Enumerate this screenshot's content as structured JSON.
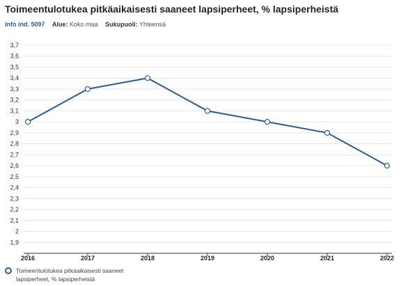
{
  "title": "Toimeentulotukea pitkäaikaisesti saaneet lapsiperheet, % lapsiperheistä",
  "meta": {
    "info_label": "info ind. 5097",
    "area_key": "Alue:",
    "area_value": "Koko maa",
    "gender_key": "Sukupuoli:",
    "gender_value": "Yhteensä"
  },
  "colors": {
    "series": "#2b5c8e",
    "grid": "#e6e6e6",
    "axis": "#333333"
  },
  "chart_data": {
    "type": "line",
    "categories": [
      "2016",
      "2017",
      "2018",
      "2019",
      "2020",
      "2021",
      "2022"
    ],
    "series": [
      {
        "name": "Toimeentulotukea pitkäaikaisesti saaneet lapsiperheet, % lapsiperheistä",
        "values": [
          3.0,
          3.3,
          3.4,
          3.1,
          3.0,
          2.9,
          2.6
        ]
      }
    ],
    "yticks": [
      "1,9",
      "2",
      "2,1",
      "2,2",
      "2,3",
      "2,4",
      "2,5",
      "2,6",
      "2,7",
      "2,8",
      "2,9",
      "3",
      "3,1",
      "3,2",
      "3,3",
      "3,4",
      "3,5",
      "3,6",
      "3,7"
    ],
    "ylim": [
      1.8,
      3.7
    ],
    "grid": true,
    "legend_position": "bottom-left"
  }
}
